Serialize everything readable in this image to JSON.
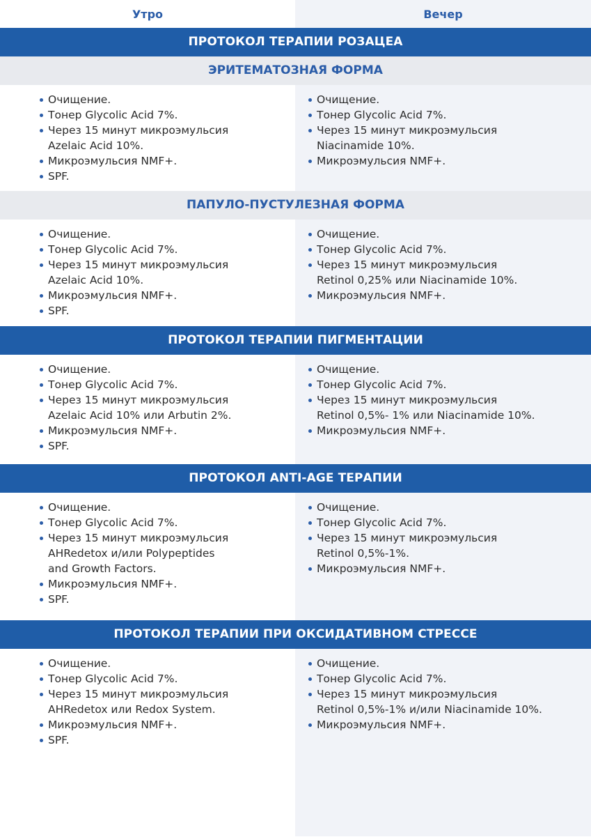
{
  "header": {
    "morning": "Утро",
    "evening": "Вечер"
  },
  "sections": [
    {
      "type": "bar",
      "title": "ПРОТОКОЛ ТЕРАПИИ РОЗАЦЕА"
    },
    {
      "type": "sub",
      "title": "ЭРИТЕМАТОЗНАЯ ФОРМА"
    },
    {
      "type": "content",
      "morning": [
        "Очищение.",
        "Тонер Glycolic Acid 7%.",
        "Через 15 минут микроэмульсия\nAzelaic Acid 10%.",
        "Микроэмульсия NMF+.",
        "SPF."
      ],
      "evening": [
        "Очищение.",
        "Тонер Glycolic Acid 7%.",
        "Через 15 минут микроэмульсия\nNiacinamide 10%.",
        "Микроэмульсия NMF+."
      ]
    },
    {
      "type": "sub",
      "title": "ПАПУЛО-ПУСТУЛЕЗНАЯ ФОРМА"
    },
    {
      "type": "content",
      "morning": [
        "Очищение.",
        "Тонер Glycolic Acid 7%.",
        "Через 15 минут микроэмульсия\nAzelaic Acid 10%.",
        "Микроэмульсия NMF+.",
        "SPF."
      ],
      "evening": [
        "Очищение.",
        "Тонер Glycolic Acid 7%.",
        "Через 15 минут микроэмульсия\nRetinol 0,25% или Niacinamide 10%.",
        "Микроэмульсия NMF+."
      ]
    },
    {
      "type": "bar",
      "title": "ПРОТОКОЛ ТЕРАПИИ ПИГМЕНТАЦИИ"
    },
    {
      "type": "content",
      "morning": [
        "Очищение.",
        "Тонер Glycolic Acid 7%.",
        "Через 15 минут микроэмульсия\nAzelaic Acid 10% или Arbutin 2%.",
        "Микроэмульсия NMF+.",
        "SPF."
      ],
      "evening": [
        "Очищение.",
        "Тонер Glycolic Acid 7%.",
        "Через 15 минут микроэмульсия\nRetinol 0,5%- 1% или Niacinamide 10%.",
        "Микроэмульсия NMF+."
      ]
    },
    {
      "type": "bar",
      "title": "ПРОТОКОЛ ANTI-AGE ТЕРАПИИ"
    },
    {
      "type": "content",
      "morning": [
        "Очищение.",
        "Тонер Glycolic Acid 7%.",
        "Через 15 минут микроэмульсия\nAHRedetox и/или Polypeptides\nand Growth Factors.",
        "Микроэмульсия NMF+.",
        "SPF."
      ],
      "evening": [
        "Очищение.",
        "Тонер Glycolic Acid 7%.",
        "Через 15 минут микроэмульсия\nRetinol 0,5%-1%.",
        "Микроэмульсия NMF+."
      ]
    },
    {
      "type": "bar",
      "title": "ПРОТОКОЛ ТЕРАПИИ ПРИ ОКСИДАТИВНОМ СТРЕССЕ"
    },
    {
      "type": "content",
      "morning": [
        "Очищение.",
        "Тонер Glycolic Acid 7%.",
        "Через 15 минут микроэмульсия\nAHRedetox или Redox System.",
        "Микроэмульсия NMF+.",
        "SPF."
      ],
      "evening": [
        "Очищение.",
        "Тонер Glycolic Acid 7%.",
        "Через 15 минут микроэмульсия\nRetinol 0,5%-1% и/или Niacinamide 10%.",
        "Микроэмульсия NMF+."
      ]
    }
  ]
}
